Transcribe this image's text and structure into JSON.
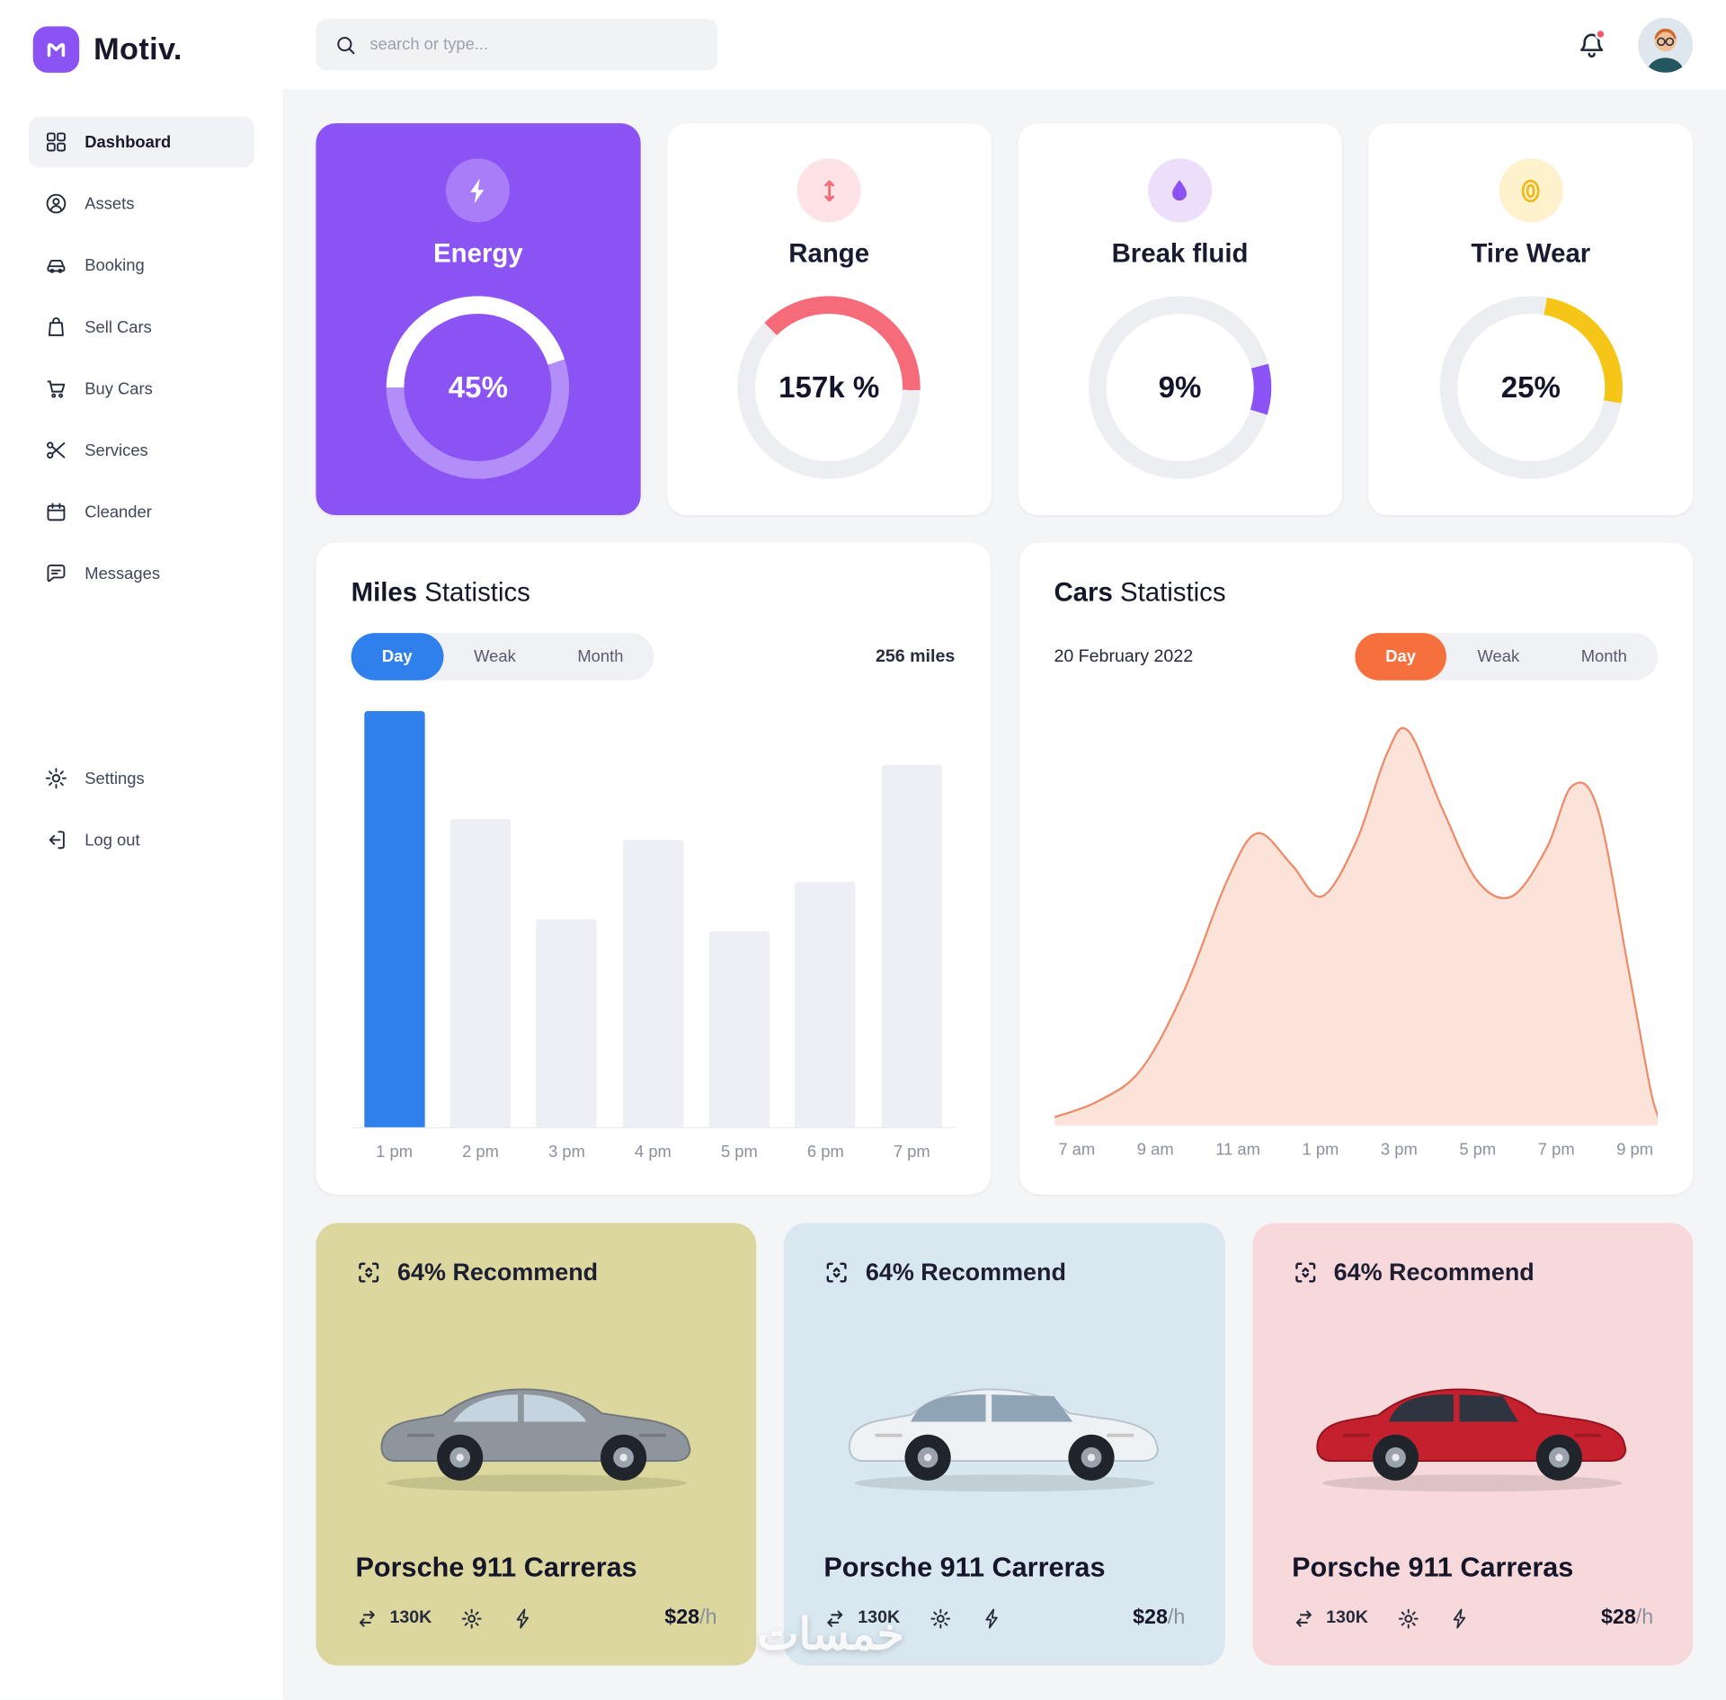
{
  "brand": {
    "name": "Motiv."
  },
  "topbar": {
    "search_placeholder": "search or type..."
  },
  "sidebar": {
    "items": [
      {
        "label": "Dashboard",
        "icon": "dashboard-icon",
        "active": true
      },
      {
        "label": "Assets",
        "icon": "assets-icon",
        "active": false
      },
      {
        "label": "Booking",
        "icon": "booking-icon",
        "active": false
      },
      {
        "label": "Sell Cars",
        "icon": "sell-cars-icon",
        "active": false
      },
      {
        "label": "Buy Cars",
        "icon": "buy-cars-icon",
        "active": false
      },
      {
        "label": "Services",
        "icon": "services-icon",
        "active": false
      },
      {
        "label": "Cleander",
        "icon": "calendar-icon",
        "active": false
      },
      {
        "label": "Messages",
        "icon": "messages-icon",
        "active": false
      }
    ],
    "footer_items": [
      {
        "label": "Settings",
        "icon": "settings-icon"
      },
      {
        "label": "Log out",
        "icon": "logout-icon"
      }
    ]
  },
  "stats": [
    {
      "title": "Energy",
      "value": "45%",
      "percent": 45,
      "start_deg": 270,
      "icon": "bolt-icon",
      "accent": "#ffffff",
      "track": "rgba(255,255,255,0.35)",
      "hole": "#8b52f4",
      "icon_bg": "rgba(255,255,255,0.25)",
      "icon_color": "#ffffff",
      "highlight": true
    },
    {
      "title": "Range",
      "value": "157k %",
      "percent": 38,
      "start_deg": 315,
      "icon": "range-icon",
      "accent": "#f56b79",
      "track": "#eceef2",
      "hole": "#ffffff",
      "icon_bg": "#fde3e6",
      "icon_color": "#f56b79",
      "highlight": false
    },
    {
      "title": "Break fluid",
      "value": "9%",
      "percent": 9,
      "start_deg": 75,
      "icon": "droplet-icon",
      "accent": "#8b52f4",
      "track": "#eceef2",
      "hole": "#ffffff",
      "icon_bg": "#eddffb",
      "icon_color": "#8b52f4",
      "highlight": false
    },
    {
      "title": "Tire Wear",
      "value": "25%",
      "percent": 25,
      "start_deg": 10,
      "icon": "tire-icon",
      "accent": "#f5c518",
      "track": "#eceef2",
      "hole": "#ffffff",
      "icon_bg": "#fdf2cc",
      "icon_color": "#eeb91c",
      "highlight": false
    }
  ],
  "miles": {
    "title_bold": "Miles",
    "title_rest": " Statistics",
    "tabs": [
      "Day",
      "Weak",
      "Month"
    ],
    "active_tab": "Day",
    "active_color": "#2f80ed",
    "total": "256 miles",
    "chart": {
      "type": "bar",
      "categories": [
        "1 pm",
        "2 pm",
        "3 pm",
        "4 pm",
        "5 pm",
        "6 pm",
        "7 pm"
      ],
      "values": [
        100,
        74,
        50,
        69,
        47,
        59,
        87
      ],
      "highlight_index": 0,
      "bar_color": "#2f80ed",
      "bar_muted": "#edeff4",
      "ylim": [
        0,
        100
      ]
    }
  },
  "cars_stats": {
    "title_bold": "Cars",
    "title_rest": " Statistics",
    "date": "20 February 2022",
    "tabs": [
      "Day",
      "Weak",
      "Month"
    ],
    "active_tab": "Day",
    "active_color": "#f5703c",
    "chart": {
      "type": "area",
      "x": [
        7,
        8,
        9,
        10,
        11,
        11.7,
        12.5,
        13.2,
        14,
        14.7,
        15.2,
        16,
        16.8,
        17.6,
        18.4,
        19,
        19.6,
        20.3,
        20.8,
        21
      ],
      "y": [
        2,
        6,
        14,
        34,
        62,
        74,
        66,
        58,
        72,
        94,
        100,
        80,
        62,
        58,
        70,
        86,
        80,
        40,
        10,
        2
      ],
      "tick_labels": [
        "7 am",
        "9 am",
        "11 am",
        "1 pm",
        "3 pm",
        "5 pm",
        "7 pm",
        "9 pm"
      ],
      "fill": "#fce3da",
      "stroke": "#ed8b68",
      "ylim": [
        0,
        105
      ]
    }
  },
  "recommend_cards": [
    {
      "badge": "64% Recommend",
      "name": "Porsche 911 Carreras",
      "mileage": "130K",
      "price": "$28",
      "price_unit": "/h",
      "bg": "#dbd79e",
      "shape": "sedan",
      "car_body": "#8e959c",
      "car_outline": "#70777e",
      "window": "#c6d4e0"
    },
    {
      "badge": "64% Recommend",
      "name": "Porsche 911 Carreras",
      "mileage": "130K",
      "price": "$28",
      "price_unit": "/h",
      "bg": "#d9e7f0",
      "shape": "suv",
      "car_body": "#eff2f5",
      "car_outline": "#b6c1ca",
      "window": "#8fa5b5"
    },
    {
      "badge": "64% Recommend",
      "name": "Porsche 911 Carreras",
      "mileage": "130K",
      "price": "$28",
      "price_unit": "/h",
      "bg": "#f7d8db",
      "shape": "hatch",
      "car_body": "#c4202e",
      "car_outline": "#93121f",
      "window": "#2e3440"
    }
  ],
  "watermark": "خمسات"
}
